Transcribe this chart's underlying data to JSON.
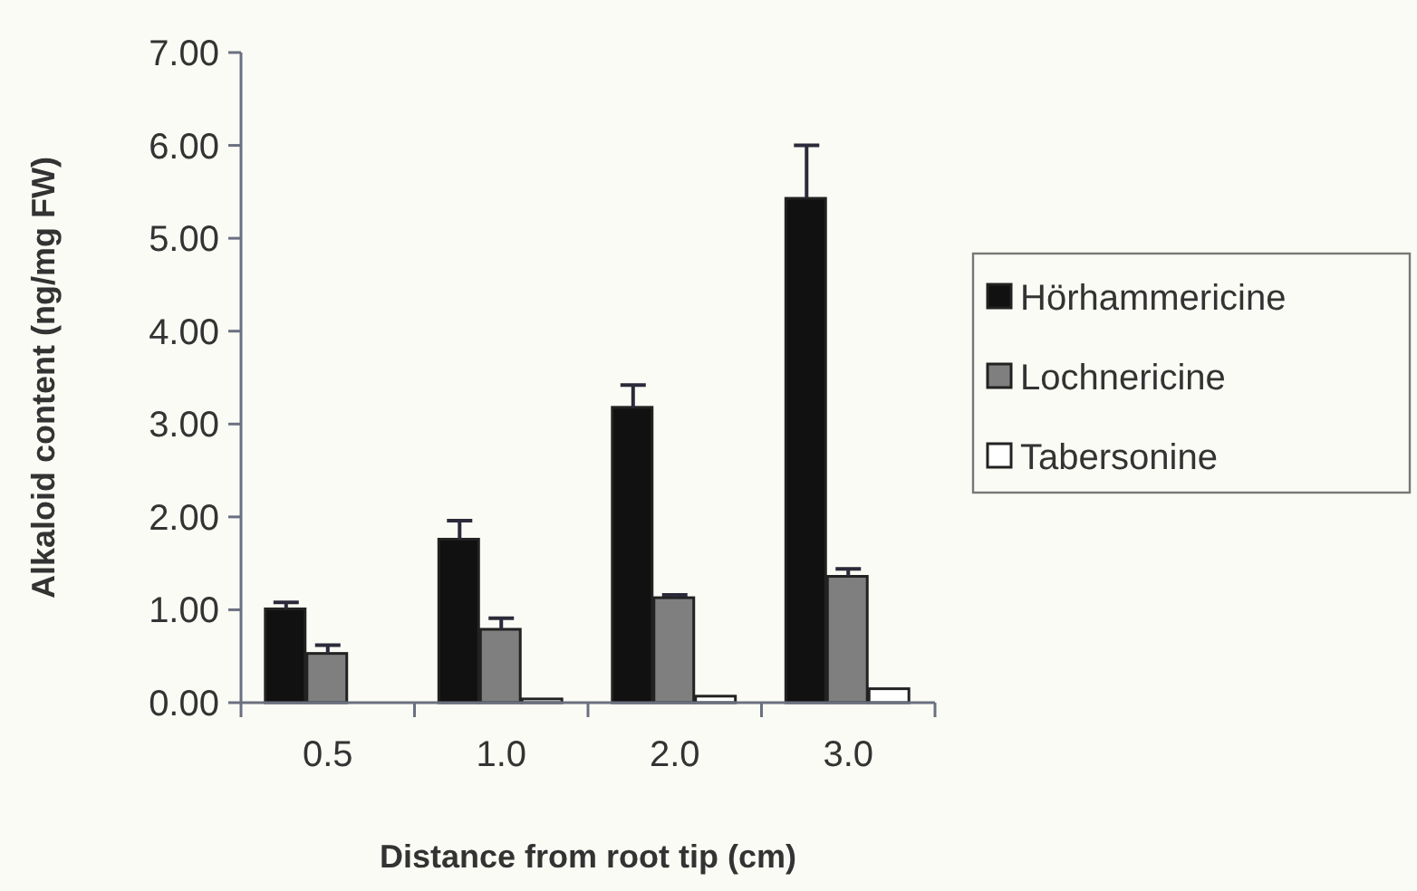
{
  "chart_data": {
    "type": "bar",
    "xlabel": "Distance from root tip (cm)",
    "ylabel": "Alkaloid content (ng/mg FW)",
    "categories": [
      "0.5",
      "1.0",
      "2.0",
      "3.0"
    ],
    "series": [
      {
        "name": "Hörhammericine",
        "color": "#111111",
        "values": [
          1.01,
          1.76,
          3.18,
          5.43
        ],
        "errors": [
          [
            1.01,
            1.08
          ],
          [
            1.76,
            1.96
          ],
          [
            3.18,
            3.42
          ],
          [
            5.43,
            6.0
          ]
        ]
      },
      {
        "name": "Lochnericine",
        "color": "#7f7f7f",
        "values": [
          0.53,
          0.79,
          1.13,
          1.36
        ],
        "errors": [
          [
            0.53,
            0.62
          ],
          [
            0.79,
            0.91
          ],
          [
            1.13,
            1.16
          ],
          [
            1.36,
            1.44
          ]
        ]
      },
      {
        "name": "Tabersonine",
        "color": "#ffffff",
        "values": [
          null,
          0.04,
          0.07,
          0.15
        ]
      }
    ],
    "ylim": [
      0,
      7
    ],
    "yticks": [
      {
        "value": 0,
        "label": "0.00"
      },
      {
        "value": 1,
        "label": "1.00"
      },
      {
        "value": 2,
        "label": "2.00"
      },
      {
        "value": 3,
        "label": "3.00"
      },
      {
        "value": 4,
        "label": "4.00"
      },
      {
        "value": 5,
        "label": "5.00"
      },
      {
        "value": 6,
        "label": "6.00"
      },
      {
        "value": 7,
        "label": "7.00"
      }
    ],
    "legend": "right"
  }
}
